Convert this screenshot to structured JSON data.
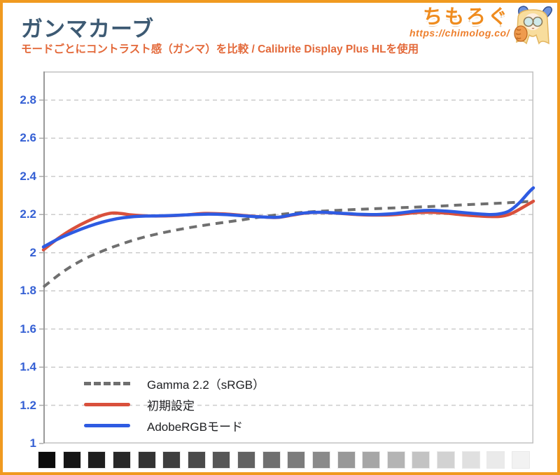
{
  "header": {
    "title": "ガンマカーブ",
    "subtitle": "モードごとにコントラスト感（ガンマ）を比較 / Calibrite Display Plus HLを使用",
    "brand": {
      "name": "ちもろぐ",
      "url": "https://chimolog.co/"
    }
  },
  "colors": {
    "frame_border": "#f09a20",
    "title_text": "#3d5a73",
    "subtitle_text": "#e3693a",
    "brand_orange": "#ef8c1f",
    "axis_label_blue": "#3560d4",
    "gridline": "#cccccc",
    "plot_frame": "#c2c2c2",
    "series_gamma_ref": "#6f6f6f",
    "series_default": "#d9503c",
    "series_adobergb": "#2e5be2"
  },
  "chart_data": {
    "type": "line",
    "title": "ガンマカーブ",
    "xlabel": "",
    "ylabel": "",
    "x_axis": "grayscale level (black to white), no tick labels shown",
    "ylim": [
      1,
      2.95
    ],
    "y_ticks": [
      1,
      1.2,
      1.4,
      1.6,
      1.8,
      2,
      2.2,
      2.4,
      2.6,
      2.8
    ],
    "grid": "horizontal dashed",
    "legend_position": "inside bottom-left",
    "series": [
      {
        "name": "Gamma 2.2（sRGB）",
        "color": "#6f6f6f",
        "style": "dashed",
        "points": [
          [
            0,
            1.82
          ],
          [
            4,
            1.9
          ],
          [
            8,
            1.962
          ],
          [
            12,
            2.008
          ],
          [
            16,
            2.046
          ],
          [
            20,
            2.078
          ],
          [
            25,
            2.108
          ],
          [
            30,
            2.132
          ],
          [
            35,
            2.152
          ],
          [
            40,
            2.17
          ],
          [
            45,
            2.19
          ],
          [
            50,
            2.205
          ],
          [
            55,
            2.215
          ],
          [
            60,
            2.222
          ],
          [
            65,
            2.228
          ],
          [
            70,
            2.233
          ],
          [
            75,
            2.238
          ],
          [
            80,
            2.243
          ],
          [
            85,
            2.25
          ],
          [
            90,
            2.256
          ],
          [
            95,
            2.262
          ],
          [
            100,
            2.27
          ]
        ]
      },
      {
        "name": "初期設定",
        "color": "#d9503c",
        "style": "solid",
        "points": [
          [
            0,
            2.015
          ],
          [
            3,
            2.075
          ],
          [
            6,
            2.125
          ],
          [
            9,
            2.165
          ],
          [
            12,
            2.196
          ],
          [
            14,
            2.208
          ],
          [
            16,
            2.205
          ],
          [
            18,
            2.198
          ],
          [
            21,
            2.193
          ],
          [
            25,
            2.193
          ],
          [
            29,
            2.198
          ],
          [
            33,
            2.206
          ],
          [
            37,
            2.203
          ],
          [
            41,
            2.195
          ],
          [
            45,
            2.187
          ],
          [
            48,
            2.185
          ],
          [
            51,
            2.198
          ],
          [
            54,
            2.209
          ],
          [
            57,
            2.211
          ],
          [
            60,
            2.207
          ],
          [
            64,
            2.2
          ],
          [
            68,
            2.197
          ],
          [
            72,
            2.2
          ],
          [
            76,
            2.21
          ],
          [
            79,
            2.212
          ],
          [
            82,
            2.208
          ],
          [
            85,
            2.2
          ],
          [
            88,
            2.194
          ],
          [
            91,
            2.19
          ],
          [
            93,
            2.19
          ],
          [
            95,
            2.2
          ],
          [
            97,
            2.225
          ],
          [
            100,
            2.27
          ]
        ]
      },
      {
        "name": "AdobeRGBモード",
        "color": "#2e5be2",
        "style": "solid",
        "points": [
          [
            0,
            2.03
          ],
          [
            3,
            2.072
          ],
          [
            6,
            2.106
          ],
          [
            9,
            2.136
          ],
          [
            12,
            2.16
          ],
          [
            15,
            2.178
          ],
          [
            18,
            2.188
          ],
          [
            21,
            2.192
          ],
          [
            25,
            2.194
          ],
          [
            29,
            2.198
          ],
          [
            33,
            2.202
          ],
          [
            37,
            2.2
          ],
          [
            41,
            2.193
          ],
          [
            45,
            2.187
          ],
          [
            48,
            2.186
          ],
          [
            51,
            2.2
          ],
          [
            54,
            2.21
          ],
          [
            57,
            2.212
          ],
          [
            60,
            2.208
          ],
          [
            64,
            2.202
          ],
          [
            68,
            2.2
          ],
          [
            72,
            2.206
          ],
          [
            76,
            2.218
          ],
          [
            79,
            2.222
          ],
          [
            82,
            2.218
          ],
          [
            85,
            2.212
          ],
          [
            88,
            2.205
          ],
          [
            91,
            2.2
          ],
          [
            93,
            2.203
          ],
          [
            95,
            2.218
          ],
          [
            97,
            2.258
          ],
          [
            99,
            2.315
          ],
          [
            100,
            2.34
          ]
        ]
      }
    ]
  },
  "grayscale_strip": {
    "patches": [
      "#0b0b0b",
      "#151515",
      "#1e1e1e",
      "#282828",
      "#333333",
      "#3e3e3e",
      "#4a4a4a",
      "#565656",
      "#626262",
      "#6f6f6f",
      "#7c7c7c",
      "#8a8a8a",
      "#989898",
      "#a6a6a6",
      "#b4b4b4",
      "#c3c3c3",
      "#d2d2d2",
      "#e0e0e0",
      "#eaeaea",
      "#f2f2f2"
    ]
  }
}
